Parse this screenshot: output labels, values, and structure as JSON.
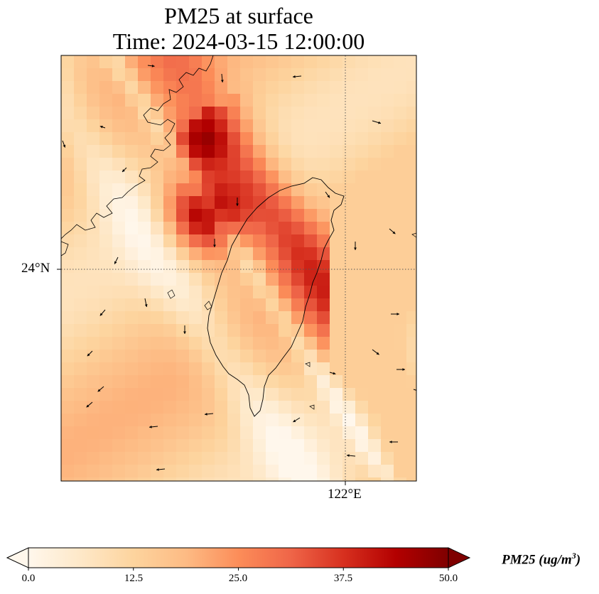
{
  "title_line1": "PM25 at surface",
  "title_line2": "Time: 2024-03-15 12:00:00",
  "gridlines": {
    "lat_label": "24°N",
    "lon_label": "122°E"
  },
  "colorbar": {
    "label_main": "PM25 (ug/m",
    "label_exp": "3",
    "label_close": ")",
    "ticks": [
      "0.0",
      "12.5",
      "25.0",
      "37.5",
      "50.0"
    ],
    "min": 0,
    "max": 50,
    "extend": "both",
    "colormap": "OrRd",
    "colors": [
      "#fff7ec",
      "#fee8c8",
      "#fdd49e",
      "#fdbb84",
      "#fc8d59",
      "#ef6548",
      "#d7301f",
      "#b30000",
      "#7f0000"
    ]
  },
  "map": {
    "region": "Taiwan Strait",
    "features": [
      "coastline",
      "wind-vectors",
      "pm25-field"
    ],
    "hotspot_max": "50.0"
  }
}
